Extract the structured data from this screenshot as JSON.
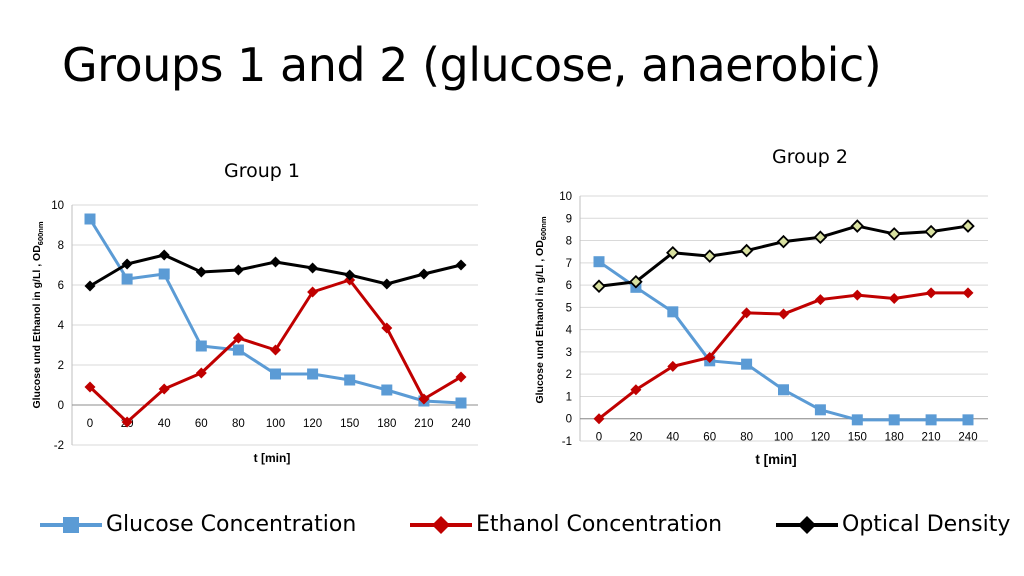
{
  "slide": {
    "title": "Groups 1 and 2 (glucose, anaerobic)"
  },
  "colors": {
    "glucose": "#5b9bd5",
    "ethanol": "#c00000",
    "od": "#000000",
    "grid": "#d9d9d9"
  },
  "legend": {
    "items": [
      {
        "label": "Glucose Concentration",
        "marker": "square",
        "color": "#5b9bd5"
      },
      {
        "label": "Ethanol Concentration",
        "marker": "diamond",
        "color": "#c00000"
      },
      {
        "label": "Optical Density",
        "marker": "diamond",
        "color": "#000000"
      }
    ]
  },
  "chart_data": [
    {
      "type": "line",
      "title": "Group 1",
      "xlabel": "t [min]",
      "ylabel": "Glucose und Ethanol in g/Ll , OD600nm",
      "categories": [
        "0",
        "20",
        "40",
        "60",
        "80",
        "100",
        "120",
        "150",
        "180",
        "210",
        "240"
      ],
      "ylim": [
        -2,
        10
      ],
      "yticks": [
        -2,
        0,
        2,
        4,
        6,
        8,
        10
      ],
      "grid": true,
      "series": [
        {
          "name": "Glucose Concentration",
          "marker": "square",
          "color": "#5b9bd5",
          "values": [
            9.3,
            6.3,
            6.55,
            2.95,
            2.75,
            1.55,
            1.55,
            1.25,
            0.75,
            0.2,
            0.1
          ]
        },
        {
          "name": "Ethanol Concentration",
          "marker": "diamond",
          "color": "#c00000",
          "values": [
            0.9,
            -0.85,
            0.8,
            1.6,
            3.35,
            2.75,
            5.65,
            6.25,
            3.85,
            0.3,
            1.4
          ]
        },
        {
          "name": "Optical Density",
          "marker": "diamond",
          "color": "#000000",
          "values": [
            5.95,
            7.05,
            7.5,
            6.65,
            6.75,
            7.15,
            6.85,
            6.5,
            6.05,
            6.55,
            7.0
          ]
        }
      ]
    },
    {
      "type": "line",
      "title": "Group 2",
      "xlabel": "t [min]",
      "ylabel": "Glucose und Ethanol in g/Ll , OD600nm",
      "categories": [
        "0",
        "20",
        "40",
        "60",
        "80",
        "100",
        "120",
        "150",
        "180",
        "210",
        "240"
      ],
      "ylim": [
        -1,
        10
      ],
      "yticks": [
        -1,
        0,
        1,
        2,
        3,
        4,
        5,
        6,
        7,
        8,
        9,
        10
      ],
      "grid": true,
      "series": [
        {
          "name": "Glucose Concentration",
          "marker": "square",
          "color": "#5b9bd5",
          "values": [
            7.05,
            5.9,
            4.8,
            2.6,
            2.45,
            1.3,
            0.4,
            -0.05,
            -0.05,
            -0.05,
            -0.05
          ]
        },
        {
          "name": "Ethanol Concentration",
          "marker": "diamond",
          "color": "#c00000",
          "values": [
            0.0,
            1.3,
            2.35,
            2.75,
            4.75,
            4.7,
            5.35,
            5.55,
            5.4,
            5.65,
            5.65
          ]
        },
        {
          "name": "Optical Density",
          "marker": "diamond",
          "color": "#000000",
          "values": [
            5.95,
            6.15,
            7.45,
            7.3,
            7.55,
            7.95,
            8.15,
            8.65,
            8.3,
            8.4,
            8.65
          ]
        }
      ]
    }
  ]
}
